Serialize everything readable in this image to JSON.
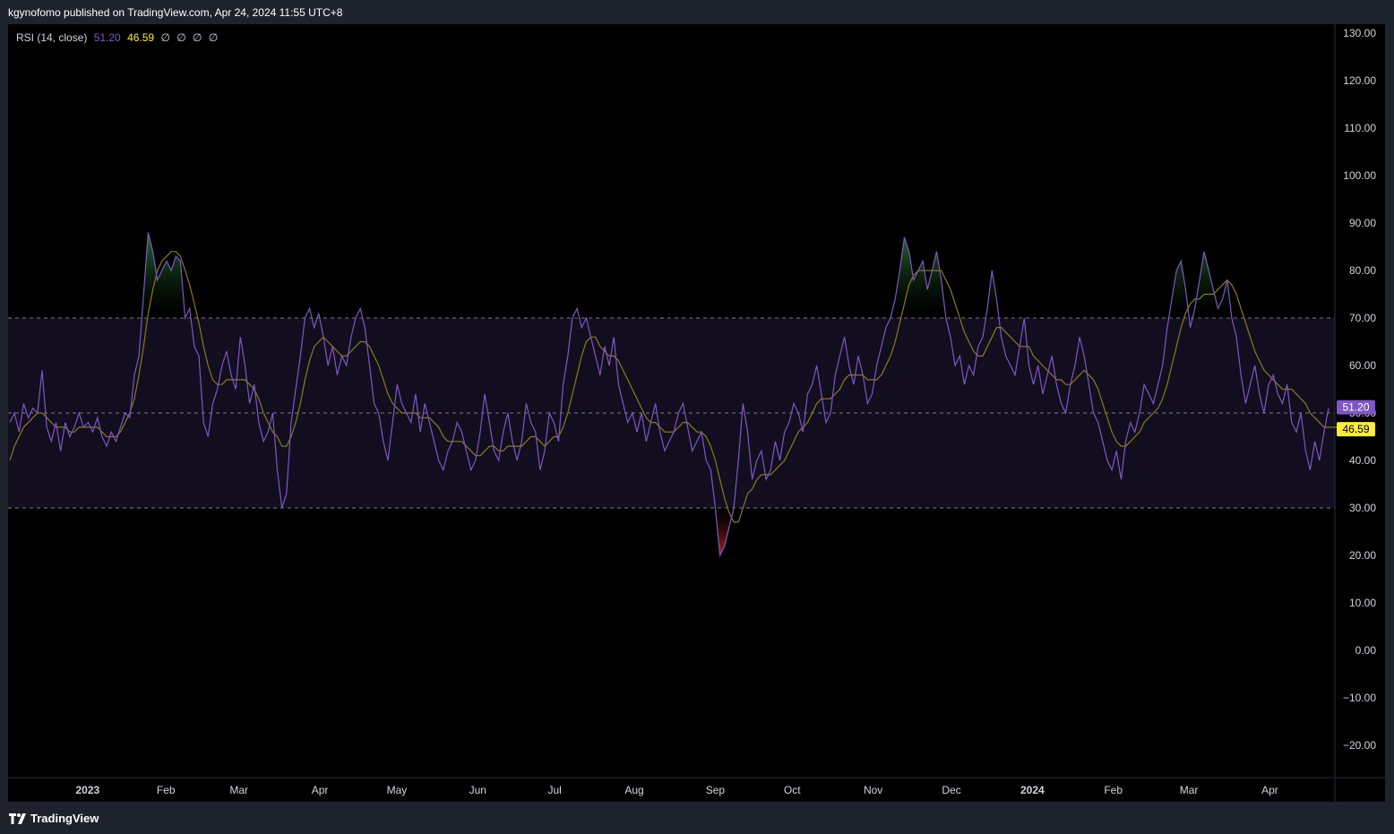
{
  "header": {
    "published": "kgynofomo published on TradingView.com, Apr 24, 2024 11:55 UTC+8"
  },
  "legend": {
    "name": "RSI (14, close)",
    "rsi_value": "51.20",
    "ma_value": "46.59",
    "extras": [
      "∅",
      "∅",
      "∅",
      "∅"
    ]
  },
  "footer": {
    "brand": "TradingView"
  },
  "colors": {
    "rsi": "#7e57c2",
    "ma": "#8a7b1d",
    "band": "#120e1f",
    "overbought_fill": "#1b5e20",
    "oversold_fill": "#7f1d1d",
    "badge_rsi": "#7e57c2",
    "badge_ma": "#ffeb3b"
  },
  "chart_data": {
    "type": "line",
    "title": "",
    "xlabel": "",
    "ylabel": "",
    "ylim": [
      -25,
      132
    ],
    "y_ticks": [
      "130.00",
      "120.00",
      "110.00",
      "100.00",
      "90.00",
      "80.00",
      "70.00",
      "60.00",
      "50.00",
      "40.00",
      "30.00",
      "20.00",
      "10.00",
      "0.00",
      "−10.00",
      "−20.00"
    ],
    "y_tick_values": [
      130,
      120,
      110,
      100,
      90,
      80,
      70,
      60,
      50,
      40,
      30,
      20,
      10,
      0,
      -10,
      -20
    ],
    "x_ticks": [
      {
        "label": "2023",
        "t": 0.06,
        "bold": true
      },
      {
        "label": "Feb",
        "t": 0.119
      },
      {
        "label": "Mar",
        "t": 0.174
      },
      {
        "label": "Apr",
        "t": 0.235
      },
      {
        "label": "May",
        "t": 0.293
      },
      {
        "label": "Jun",
        "t": 0.354
      },
      {
        "label": "Jul",
        "t": 0.412
      },
      {
        "label": "Aug",
        "t": 0.472
      },
      {
        "label": "Sep",
        "t": 0.533
      },
      {
        "label": "Oct",
        "t": 0.591
      },
      {
        "label": "Nov",
        "t": 0.652
      },
      {
        "label": "Dec",
        "t": 0.711
      },
      {
        "label": "2024",
        "t": 0.772,
        "bold": true
      },
      {
        "label": "Feb",
        "t": 0.833
      },
      {
        "label": "Mar",
        "t": 0.89
      },
      {
        "label": "Apr",
        "t": 0.951
      }
    ],
    "levels": {
      "upper": 70,
      "middle": 50,
      "lower": 30
    },
    "series": [
      {
        "values": [
          48,
          50,
          46,
          52,
          49,
          51,
          50,
          59,
          47,
          44,
          48,
          42,
          48,
          45,
          47,
          50,
          47,
          48,
          46,
          49,
          45,
          43,
          46,
          44,
          47,
          50,
          49,
          58,
          62,
          75,
          88,
          84,
          78,
          80,
          82,
          80,
          83,
          82,
          70,
          72,
          64,
          62,
          48,
          45,
          52,
          55,
          60,
          63,
          58,
          55,
          66,
          60,
          52,
          56,
          48,
          44,
          46,
          50,
          38,
          30,
          33,
          48,
          55,
          62,
          70,
          72,
          68,
          71,
          66,
          60,
          64,
          58,
          62,
          60,
          66,
          70,
          72,
          68,
          60,
          52,
          50,
          44,
          40,
          48,
          56,
          52,
          50,
          48,
          54,
          46,
          52,
          48,
          44,
          40,
          38,
          42,
          44,
          48,
          46,
          42,
          38,
          40,
          46,
          54,
          48,
          42,
          40,
          46,
          50,
          44,
          40,
          44,
          52,
          48,
          46,
          38,
          42,
          50,
          48,
          44,
          56,
          62,
          70,
          72,
          68,
          70,
          66,
          62,
          58,
          64,
          60,
          66,
          56,
          52,
          48,
          50,
          46,
          50,
          44,
          48,
          52,
          46,
          42,
          44,
          46,
          50,
          52,
          47,
          42,
          44,
          46,
          40,
          38,
          30,
          20,
          22,
          26,
          30,
          40,
          52,
          46,
          36,
          40,
          42,
          36,
          38,
          44,
          40,
          46,
          48,
          52,
          50,
          46,
          54,
          56,
          60,
          54,
          48,
          50,
          58,
          62,
          66,
          60,
          56,
          62,
          58,
          52,
          54,
          60,
          64,
          68,
          70,
          74,
          80,
          87,
          84,
          78,
          80,
          82,
          76,
          80,
          84,
          78,
          70,
          66,
          60,
          62,
          56,
          60,
          58,
          64,
          66,
          72,
          80,
          74,
          66,
          62,
          60,
          58,
          64,
          70,
          60,
          56,
          60,
          54,
          58,
          62,
          56,
          52,
          50,
          56,
          60,
          66,
          62,
          56,
          50,
          48,
          44,
          40,
          38,
          42,
          36,
          44,
          48,
          46,
          50,
          56,
          54,
          52,
          56,
          60,
          68,
          74,
          80,
          82,
          76,
          68,
          72,
          78,
          84,
          80,
          76,
          72,
          74,
          78,
          70,
          66,
          58,
          52,
          56,
          60,
          54,
          50,
          56,
          58,
          54,
          52,
          56,
          48,
          46,
          50,
          42,
          38,
          44,
          40,
          46,
          51
        ]
      },
      {
        "values": [
          40,
          43,
          45,
          47,
          48,
          49,
          50,
          50,
          49,
          48,
          47,
          47,
          47,
          46,
          46,
          47,
          47,
          47,
          47,
          47,
          46,
          45,
          45,
          45,
          46,
          48,
          50,
          53,
          58,
          64,
          71,
          76,
          80,
          82,
          83,
          84,
          84,
          83,
          80,
          77,
          73,
          69,
          64,
          60,
          57,
          56,
          56,
          57,
          57,
          57,
          57,
          57,
          56,
          55,
          53,
          50,
          48,
          46,
          45,
          43,
          43,
          45,
          48,
          52,
          57,
          61,
          64,
          65,
          66,
          65,
          64,
          63,
          62,
          62,
          63,
          64,
          65,
          65,
          64,
          62,
          60,
          57,
          54,
          52,
          51,
          50,
          50,
          50,
          50,
          49,
          49,
          49,
          48,
          47,
          45,
          44,
          44,
          44,
          44,
          43,
          42,
          41,
          41,
          42,
          43,
          43,
          42,
          42,
          43,
          43,
          43,
          43,
          44,
          45,
          45,
          44,
          43,
          44,
          45,
          45,
          47,
          50,
          54,
          58,
          62,
          65,
          66,
          66,
          64,
          63,
          62,
          62,
          61,
          59,
          57,
          55,
          53,
          51,
          49,
          48,
          48,
          47,
          46,
          46,
          46,
          47,
          48,
          48,
          47,
          46,
          46,
          45,
          43,
          40,
          36,
          32,
          29,
          27,
          27,
          30,
          33,
          34,
          36,
          37,
          37,
          37,
          38,
          39,
          40,
          42,
          44,
          46,
          47,
          48,
          50,
          52,
          53,
          53,
          53,
          54,
          55,
          57,
          58,
          58,
          58,
          58,
          57,
          57,
          57,
          58,
          60,
          62,
          65,
          69,
          73,
          77,
          79,
          80,
          80,
          80,
          80,
          80,
          80,
          78,
          76,
          73,
          70,
          67,
          65,
          63,
          62,
          62,
          64,
          66,
          68,
          68,
          67,
          66,
          65,
          64,
          64,
          64,
          62,
          61,
          60,
          59,
          58,
          57,
          57,
          56,
          56,
          57,
          58,
          59,
          58,
          57,
          55,
          52,
          49,
          46,
          44,
          43,
          43,
          44,
          45,
          46,
          48,
          49,
          50,
          51,
          53,
          56,
          60,
          64,
          68,
          71,
          73,
          74,
          74,
          75,
          75,
          75,
          76,
          77,
          78,
          77,
          75,
          72,
          69,
          66,
          63,
          61,
          59,
          58,
          57,
          56,
          55,
          55,
          55,
          54,
          53,
          52,
          50,
          49,
          48,
          47,
          47,
          47,
          47
        ]
      }
    ]
  }
}
